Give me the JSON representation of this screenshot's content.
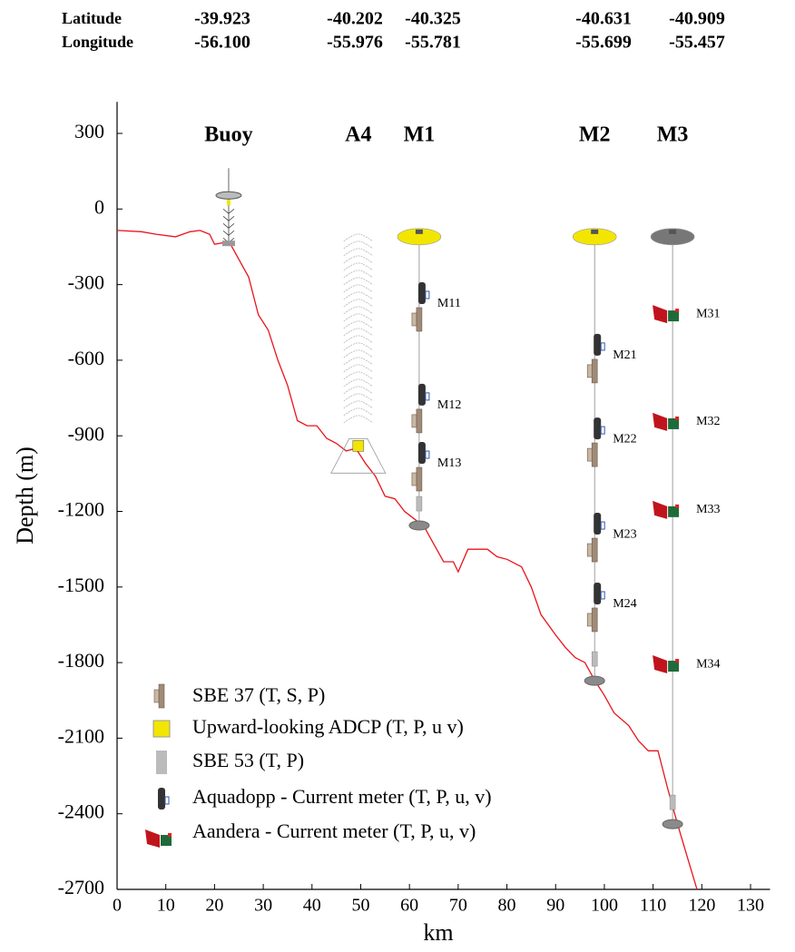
{
  "chart_data": {
    "type": "line",
    "coordinates": {
      "labels": [
        "Latitude",
        "Longitude"
      ],
      "latitude": [
        "-39.923",
        "-40.202",
        "-40.325",
        "-40.631",
        "-40.909"
      ],
      "longitude": [
        "-56.100",
        "-55.976",
        "-55.781",
        "-55.699",
        "-55.457"
      ]
    },
    "x": [
      0,
      5,
      8,
      12,
      15,
      17,
      19,
      20,
      23,
      25,
      27,
      29,
      31,
      33,
      35,
      37,
      39,
      41,
      43,
      45,
      47,
      49,
      51,
      53,
      55,
      57,
      59,
      61,
      63,
      65,
      67,
      69,
      70,
      72,
      76,
      78,
      80,
      83,
      85,
      87,
      90,
      92,
      94,
      96,
      98,
      100,
      102,
      105,
      107,
      109,
      111,
      113,
      115,
      117,
      119
    ],
    "values": [
      -85,
      -90,
      -100,
      -110,
      -90,
      -85,
      -100,
      -140,
      -130,
      -200,
      -270,
      -420,
      -480,
      -600,
      -700,
      -840,
      -860,
      -860,
      -910,
      -930,
      -960,
      -950,
      -1010,
      -1060,
      -1140,
      -1150,
      -1200,
      -1230,
      -1260,
      -1330,
      -1400,
      -1400,
      -1440,
      -1350,
      -1350,
      -1380,
      -1390,
      -1420,
      -1500,
      -1610,
      -1690,
      -1740,
      -1780,
      -1800,
      -1870,
      -1930,
      -2000,
      -2050,
      -2110,
      -2150,
      -2150,
      -2300,
      -2440,
      -2570,
      -2700
    ],
    "color": "#e8141c",
    "moorings": [
      {
        "label": "Buoy",
        "x": 22.9,
        "bottom": -140,
        "instruments": []
      },
      {
        "label": "A4",
        "x": 49.5,
        "bottom": -940,
        "instruments": []
      },
      {
        "label": "M1",
        "x": 62,
        "bottom": -1256,
        "instruments": [
          {
            "label": "M11",
            "depth": -377
          },
          {
            "label": "M12",
            "depth": -780
          },
          {
            "label": "M13",
            "depth": -1011
          }
        ]
      },
      {
        "label": "M2",
        "x": 98,
        "bottom": -1872,
        "instruments": [
          {
            "label": "M21",
            "depth": -582
          },
          {
            "label": "M22",
            "depth": -914
          },
          {
            "label": "M23",
            "depth": -1292
          },
          {
            "label": "M24",
            "depth": -1569
          }
        ]
      },
      {
        "label": "M3",
        "x": 114,
        "bottom": -2441,
        "instruments": [
          {
            "label": "M31",
            "depth": -417
          },
          {
            "label": "M32",
            "depth": -845
          },
          {
            "label": "M33",
            "depth": -1194
          },
          {
            "label": "M34",
            "depth": -1807
          }
        ]
      }
    ],
    "legend": [
      "SBE 37 (T, S, P)",
      "Upward-looking ADCP (T, P, u v)",
      "SBE 53 (T, P)",
      "Aquadopp - Current meter (T, P, u, v)",
      "Aandera - Current meter (T, P, u, v)"
    ],
    "xlabel": "km",
    "ylabel": "Depth (m)",
    "xlim": [
      0,
      134
    ],
    "ylim": [
      -2700,
      425
    ],
    "xticks": [
      0,
      10,
      20,
      30,
      40,
      50,
      60,
      70,
      80,
      90,
      100,
      110,
      120,
      130
    ],
    "yticks": [
      300,
      0,
      -300,
      -600,
      -900,
      -1200,
      -1500,
      -1800,
      -2100,
      -2400,
      -2700
    ]
  }
}
